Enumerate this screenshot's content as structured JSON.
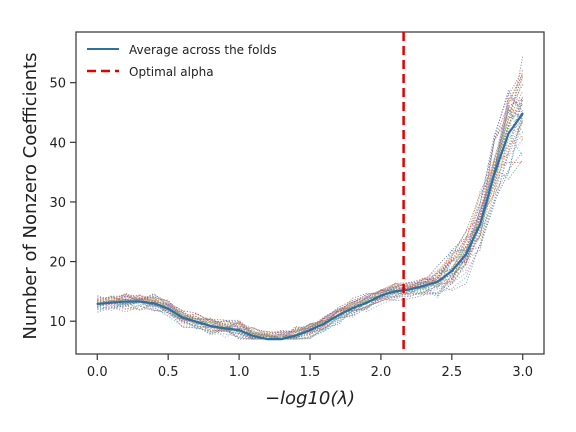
{
  "chart_data": {
    "type": "line",
    "title": "",
    "xlabel": "−log10(λ)",
    "ylabel": "Number of Nonzero Coefficients",
    "xlim": [
      -0.15,
      3.15
    ],
    "ylim": [
      4.5,
      58.5
    ],
    "xticks": [
      "0.0",
      "0.5",
      "1.0",
      "1.5",
      "2.0",
      "2.5",
      "3.0"
    ],
    "yticks": [
      "10",
      "20",
      "30",
      "40",
      "50"
    ],
    "grid": false,
    "legend_position": "top-left",
    "x": [
      0.0,
      0.1,
      0.2,
      0.3,
      0.4,
      0.5,
      0.6,
      0.7,
      0.8,
      0.9,
      1.0,
      1.1,
      1.2,
      1.3,
      1.4,
      1.5,
      1.6,
      1.7,
      1.8,
      1.9,
      2.0,
      2.1,
      2.2,
      2.3,
      2.4,
      2.5,
      2.6,
      2.7,
      2.8,
      2.9,
      3.0
    ],
    "series": [
      {
        "name": "Average across the folds",
        "color": "#2e6f9e",
        "values": [
          12.9,
          13.1,
          13.3,
          13.3,
          13.0,
          12.1,
          10.6,
          9.9,
          9.2,
          8.8,
          8.5,
          7.5,
          7.0,
          7.0,
          7.6,
          8.5,
          9.6,
          11.0,
          12.2,
          13.1,
          14.3,
          15.0,
          15.3,
          15.9,
          16.6,
          18.4,
          21.2,
          26.3,
          34.7,
          41.5,
          44.8
        ]
      }
    ],
    "fold_lines": {
      "count": 40,
      "style": "dotted",
      "min_value": 7,
      "max_value": 56
    },
    "optimal_alpha": {
      "name": "Optimal alpha",
      "x": 2.16,
      "color": "#e00000"
    }
  }
}
